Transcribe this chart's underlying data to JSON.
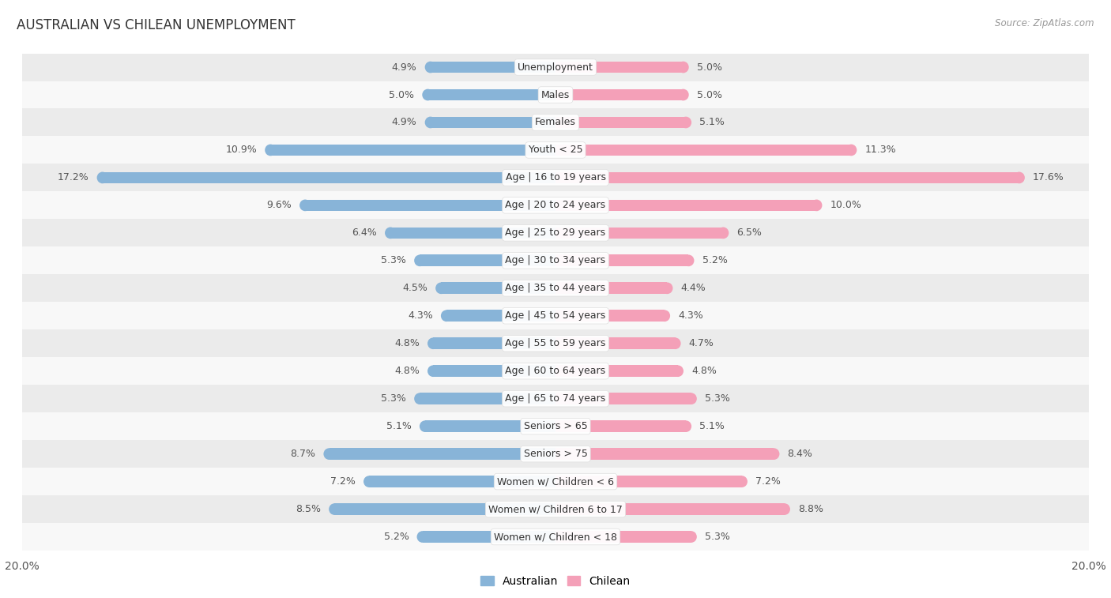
{
  "title": "AUSTRALIAN VS CHILEAN UNEMPLOYMENT",
  "source": "Source: ZipAtlas.com",
  "categories": [
    "Unemployment",
    "Males",
    "Females",
    "Youth < 25",
    "Age | 16 to 19 years",
    "Age | 20 to 24 years",
    "Age | 25 to 29 years",
    "Age | 30 to 34 years",
    "Age | 35 to 44 years",
    "Age | 45 to 54 years",
    "Age | 55 to 59 years",
    "Age | 60 to 64 years",
    "Age | 65 to 74 years",
    "Seniors > 65",
    "Seniors > 75",
    "Women w/ Children < 6",
    "Women w/ Children 6 to 17",
    "Women w/ Children < 18"
  ],
  "australian": [
    4.9,
    5.0,
    4.9,
    10.9,
    17.2,
    9.6,
    6.4,
    5.3,
    4.5,
    4.3,
    4.8,
    4.8,
    5.3,
    5.1,
    8.7,
    7.2,
    8.5,
    5.2
  ],
  "chilean": [
    5.0,
    5.0,
    5.1,
    11.3,
    17.6,
    10.0,
    6.5,
    5.2,
    4.4,
    4.3,
    4.7,
    4.8,
    5.3,
    5.1,
    8.4,
    7.2,
    8.8,
    5.3
  ],
  "australian_color": "#88b4d8",
  "chilean_color": "#f4a0b8",
  "row_bg_light": "#ebebeb",
  "row_bg_white": "#f8f8f8",
  "max_val": 20.0,
  "bar_height": 0.42,
  "label_fontsize": 9.0,
  "title_fontsize": 12,
  "source_fontsize": 8.5,
  "legend_fontsize": 10,
  "value_fontsize": 9.0
}
